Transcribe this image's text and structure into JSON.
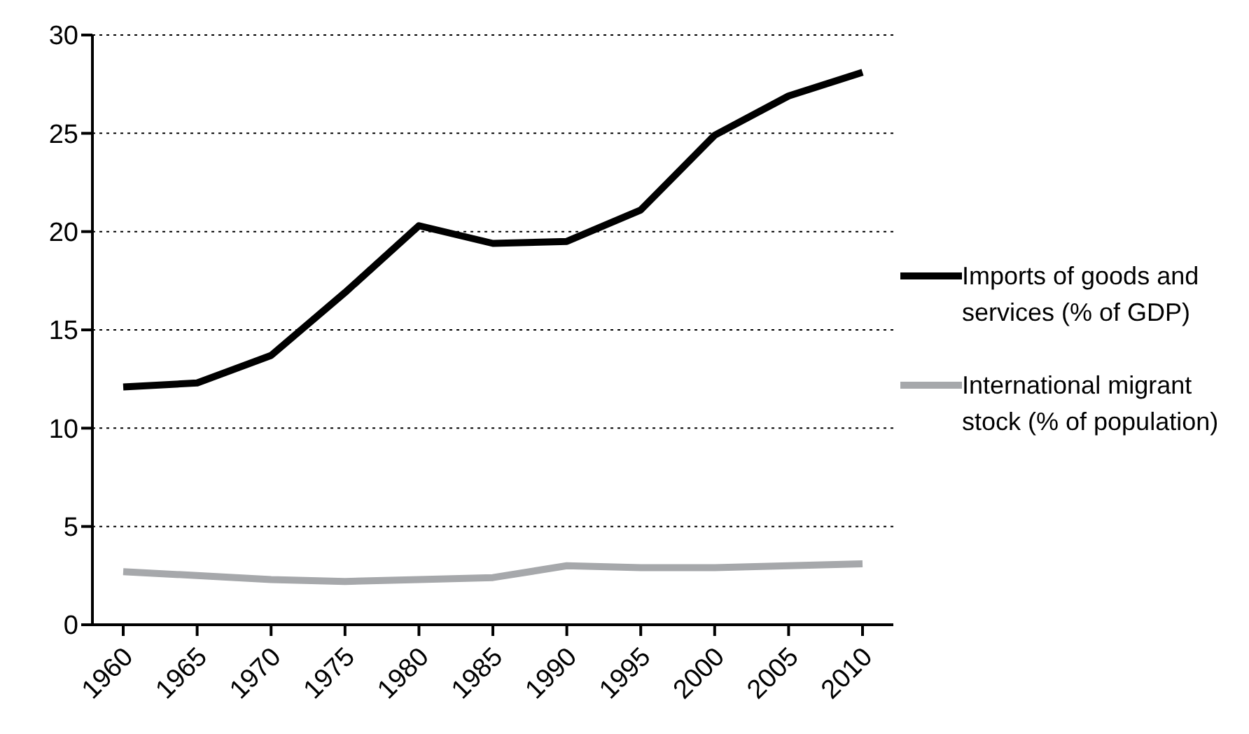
{
  "chart_data": {
    "type": "line",
    "categories": [
      "1960",
      "1965",
      "1970",
      "1975",
      "1980",
      "1985",
      "1990",
      "1995",
      "2000",
      "2005",
      "2010"
    ],
    "series": [
      {
        "name": "Imports of goods and services (% of GDP)",
        "color": "#000000",
        "values": [
          12.1,
          12.3,
          13.7,
          16.9,
          20.3,
          19.4,
          19.5,
          21.1,
          24.9,
          26.9,
          28.1
        ]
      },
      {
        "name": "International migrant stock (% of population)",
        "color": "#a6a8ab",
        "values": [
          2.7,
          2.5,
          2.3,
          2.2,
          2.3,
          2.4,
          3.0,
          2.9,
          2.9,
          3.0,
          3.1
        ]
      }
    ],
    "ylim": [
      0,
      30
    ],
    "yticks": [
      0,
      5,
      10,
      15,
      20,
      25,
      30
    ],
    "grid": "y",
    "legend": "right",
    "marker": "none",
    "line_style": "solid"
  }
}
